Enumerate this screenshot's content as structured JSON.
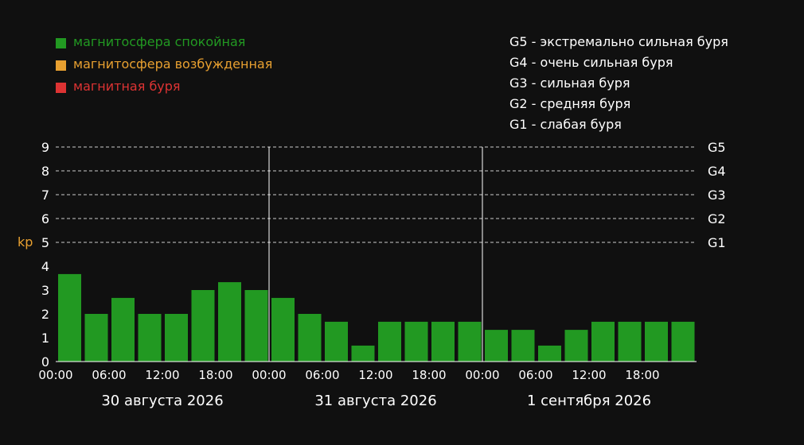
{
  "legend": {
    "items": [
      {
        "label": "магнитосфера спокойная",
        "color": "#229922"
      },
      {
        "label": "магнитосфера возбужденная",
        "color": "#e8a030"
      },
      {
        "label": "магнитная буря",
        "color": "#dd3333"
      }
    ]
  },
  "scale": {
    "items": [
      "G5 - экстремально сильная буря",
      "G4 - очень сильная буря",
      "G3 - сильная буря",
      "G2 - средняя буря",
      "G1 - слабая буря"
    ]
  },
  "chart_data": {
    "type": "bar",
    "ylabel": "kp",
    "ylabel_color": "#e8a030",
    "ylim": [
      0,
      9
    ],
    "yticks": [
      "0",
      "1",
      "2",
      "3",
      "4",
      "5",
      "6",
      "7",
      "8",
      "9"
    ],
    "grid_levels": [
      {
        "value": 5,
        "label": "G1"
      },
      {
        "value": 6,
        "label": "G2"
      },
      {
        "value": 7,
        "label": "G3"
      },
      {
        "value": 8,
        "label": "G4"
      },
      {
        "value": 9,
        "label": "G5"
      }
    ],
    "days": [
      {
        "label": "30 августа 2026",
        "times": [
          "00:00",
          "06:00",
          "12:00",
          "18:00"
        ],
        "values": [
          3.67,
          2,
          2.67,
          2,
          2,
          3,
          3.33,
          3
        ]
      },
      {
        "label": "31 августа 2026",
        "times": [
          "00:00",
          "06:00",
          "12:00",
          "18:00"
        ],
        "values": [
          2.67,
          2,
          1.67,
          0.67,
          1.67,
          1.67,
          1.67,
          1.67
        ]
      },
      {
        "label": "1 сентября 2026",
        "times": [
          "00:00",
          "06:00",
          "12:00",
          "18:00"
        ],
        "values": [
          1.33,
          1.33,
          0.67,
          1.33,
          1.67,
          1.67,
          1.67,
          1.67
        ]
      }
    ],
    "bar_color": "#229922"
  }
}
